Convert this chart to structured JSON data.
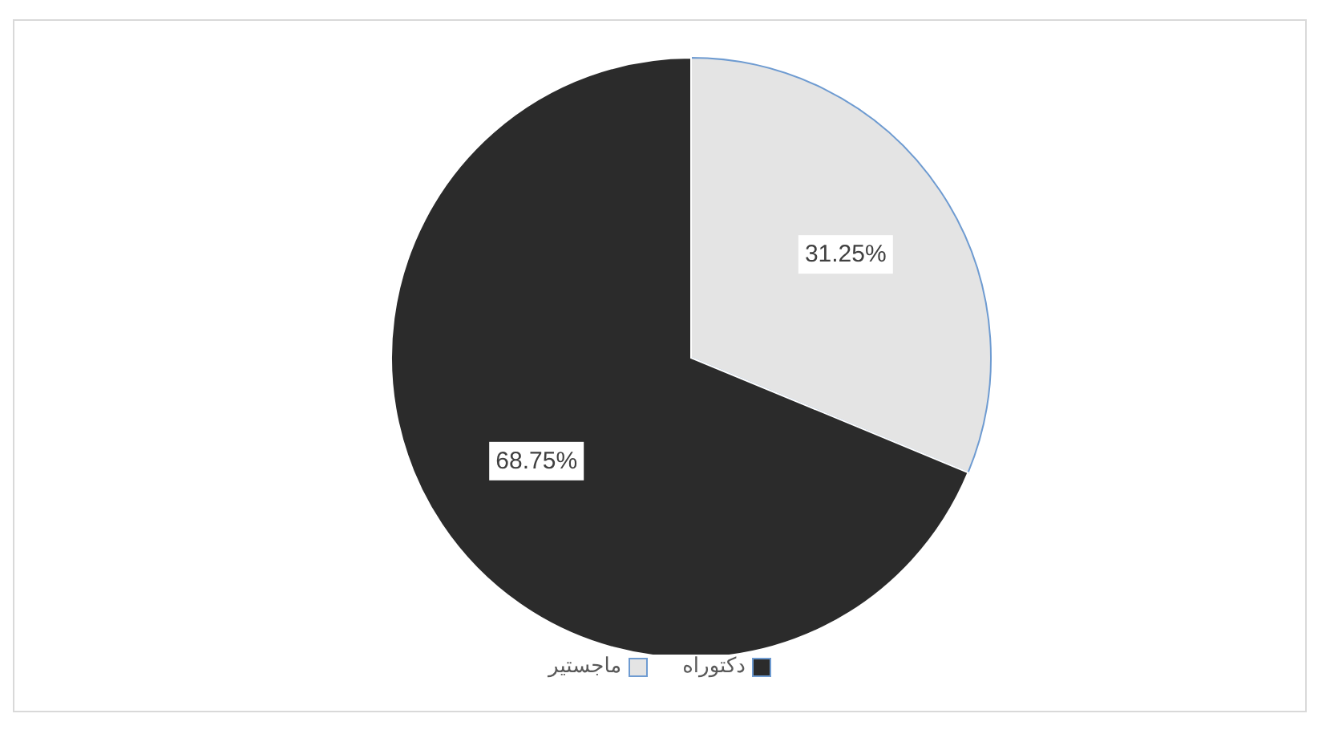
{
  "chart_data": {
    "type": "pie",
    "categories": [
      "ماجستير",
      "دكتوراه"
    ],
    "values": [
      31.25,
      68.75
    ],
    "colors": [
      "#e4e4e4",
      "#2b2b2b"
    ],
    "value_labels": [
      "31.25%",
      "68.75%"
    ],
    "legend": "bottom"
  }
}
